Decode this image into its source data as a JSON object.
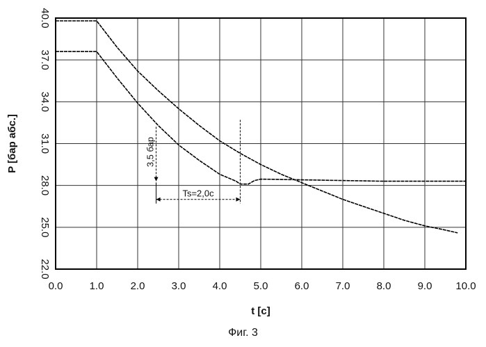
{
  "chart_data": {
    "type": "line",
    "title": "",
    "xlabel": "t [c]",
    "ylabel": "P [бар абс.]",
    "xlim": [
      0,
      10
    ],
    "ylim": [
      22,
      40
    ],
    "xticks": [
      "0.0",
      "1.0",
      "2.0",
      "3.0",
      "4.0",
      "5.0",
      "6.0",
      "7.0",
      "8.0",
      "9.0",
      "10.0"
    ],
    "yticks": [
      "22.0",
      "25.0",
      "28.0",
      "31.0",
      "34.0",
      "37.0",
      "40.0"
    ],
    "grid": true,
    "series": [
      {
        "x": [
          0,
          1.0,
          1.5,
          2.0,
          2.5,
          3.0,
          3.5,
          4.0,
          4.5,
          5.0,
          5.5,
          6.0,
          6.5,
          7.0,
          7.5,
          8.0,
          8.5,
          9.0,
          9.5,
          9.8
        ],
        "y": [
          39.8,
          39.8,
          37.9,
          36.2,
          34.8,
          33.5,
          32.3,
          31.2,
          30.3,
          29.5,
          28.8,
          28.2,
          27.6,
          27.0,
          26.5,
          26.0,
          25.5,
          25.1,
          24.8,
          24.6
        ]
      },
      {
        "x": [
          0,
          1.0,
          1.5,
          2.0,
          2.5,
          3.0,
          3.5,
          4.0,
          4.4,
          4.5,
          4.7,
          4.85,
          5.0,
          6.0,
          7.0,
          8.0,
          9.0,
          10.0
        ],
        "y": [
          37.6,
          37.6,
          35.7,
          33.9,
          32.3,
          30.9,
          29.8,
          28.8,
          28.3,
          28.1,
          28.1,
          28.35,
          28.45,
          28.4,
          28.35,
          28.3,
          28.3,
          28.3
        ]
      }
    ],
    "annotations": {
      "pressure_diff": "3,5 бар",
      "time_span": "Ts=2,0c"
    }
  },
  "caption": "Фиг. 3"
}
